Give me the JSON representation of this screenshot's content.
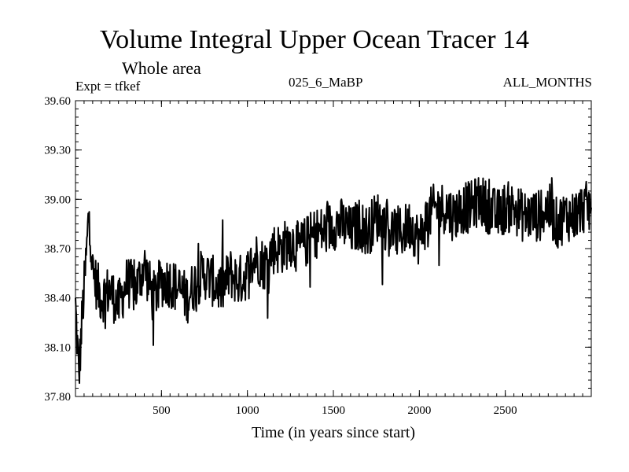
{
  "header": {
    "title": "Volume Integral Upper Ocean Tracer 14",
    "subtitle": "Whole area",
    "expt": "Expt = tfkef",
    "center_label": "025_6_MaBP",
    "right_label": "ALL_MONTHS"
  },
  "chart_data": {
    "type": "line",
    "title": "Volume Integral Upper Ocean Tracer 14",
    "subtitle": "Whole area",
    "xlabel": "Time (in years since start)",
    "ylabel": "",
    "xlim": [
      0,
      3000
    ],
    "ylim": [
      37.8,
      39.6
    ],
    "x_ticks": [
      500,
      1000,
      1500,
      2000,
      2500
    ],
    "x_tick_labels": [
      "500",
      "1000",
      "1500",
      "2000",
      "2500"
    ],
    "y_ticks": [
      37.8,
      38.1,
      38.4,
      38.7,
      39.0,
      39.3,
      39.6
    ],
    "y_tick_labels": [
      "37.80",
      "38.10",
      "38.40",
      "38.70",
      "39.00",
      "39.30",
      "39.60"
    ],
    "grid": false,
    "line_color": "#000000",
    "series": [
      {
        "x": [
          0,
          20,
          40,
          60,
          80,
          100,
          150,
          200,
          250,
          300,
          350,
          400,
          450,
          500,
          550,
          600,
          650,
          700,
          750,
          800,
          850,
          900,
          950,
          1000,
          1050,
          1100,
          1150,
          1200,
          1250,
          1300,
          1350,
          1400,
          1450,
          1500,
          1550,
          1600,
          1650,
          1700,
          1750,
          1800,
          1850,
          1900,
          1950,
          2000,
          2050,
          2100,
          2150,
          2200,
          2250,
          2300,
          2350,
          2400,
          2450,
          2500,
          2550,
          2600,
          2650,
          2700,
          2750,
          2800,
          2850,
          2900,
          2950,
          3000
        ],
        "values": [
          38.35,
          37.92,
          38.3,
          38.6,
          38.95,
          38.55,
          38.4,
          38.45,
          38.35,
          38.5,
          38.45,
          38.6,
          38.4,
          38.5,
          38.5,
          38.45,
          38.4,
          38.5,
          38.55,
          38.5,
          38.45,
          38.55,
          38.5,
          38.55,
          38.65,
          38.6,
          38.7,
          38.7,
          38.75,
          38.7,
          38.75,
          38.8,
          38.8,
          38.85,
          38.85,
          38.8,
          38.85,
          38.8,
          38.9,
          38.85,
          38.8,
          38.8,
          38.85,
          38.75,
          38.9,
          38.95,
          38.95,
          38.9,
          38.95,
          38.95,
          39.0,
          38.95,
          38.9,
          38.95,
          38.95,
          38.9,
          38.9,
          38.9,
          38.95,
          38.85,
          38.9,
          38.9,
          38.95,
          38.95
        ]
      }
    ]
  }
}
